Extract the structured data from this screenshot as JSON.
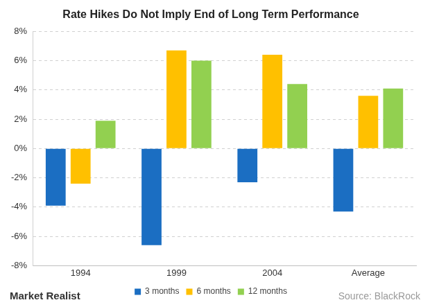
{
  "chart_data": {
    "type": "bar",
    "title": "Rate Hikes Do Not Imply End of Long Term Performance",
    "categories": [
      "1994",
      "1999",
      "2004",
      "Average"
    ],
    "series": [
      {
        "name": "3 months",
        "color": "#1b6ec2",
        "values": [
          -3.9,
          -6.6,
          -2.3,
          -4.3
        ]
      },
      {
        "name": "6 months",
        "color": "#ffc000",
        "values": [
          -2.4,
          6.7,
          6.4,
          3.6
        ]
      },
      {
        "name": "12 months",
        "color": "#92d050",
        "values": [
          1.9,
          6.0,
          4.4,
          4.1
        ]
      }
    ],
    "ylim": [
      -8,
      8
    ],
    "yticks": [
      {
        "value": -8,
        "label": "-8%"
      },
      {
        "value": -6,
        "label": "-6%"
      },
      {
        "value": -4,
        "label": "-4%"
      },
      {
        "value": -2,
        "label": "-2%"
      },
      {
        "value": 0,
        "label": "0%"
      },
      {
        "value": 2,
        "label": "2%"
      },
      {
        "value": 4,
        "label": "4%"
      },
      {
        "value": 6,
        "label": "6%"
      },
      {
        "value": 8,
        "label": "8%"
      }
    ],
    "grid": true,
    "legend": "bottom",
    "credit": "Market Realist",
    "source": "Source: BlackRock"
  }
}
